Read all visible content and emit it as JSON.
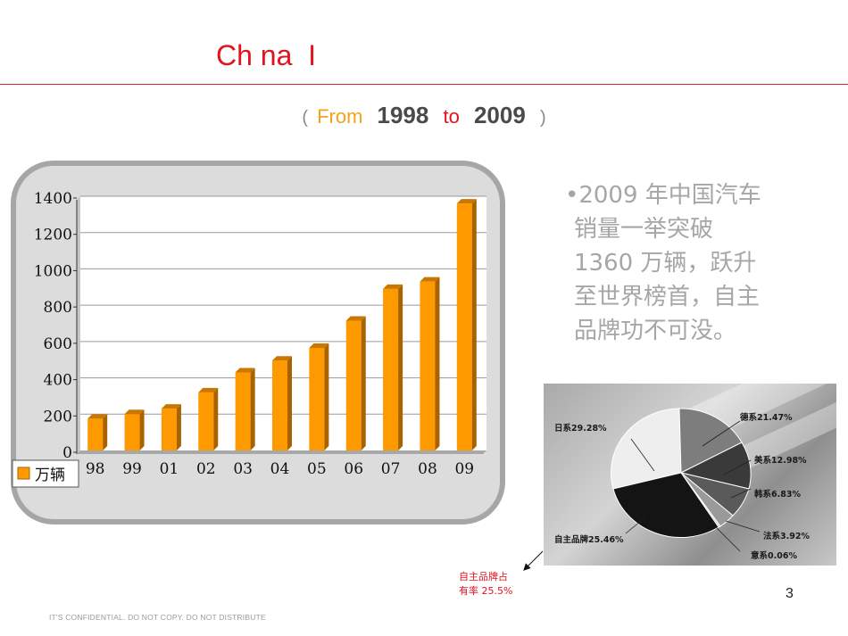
{
  "header": {
    "title": "Ch na  I",
    "subtitle": {
      "open_paren": "(",
      "from": "From",
      "start_year": "1998",
      "to": "to",
      "end_year": "2009",
      "close_paren": ")"
    }
  },
  "chart_data": {
    "type": "bar",
    "categories": [
      "98",
      "99",
      "01",
      "02",
      "03",
      "04",
      "05",
      "06",
      "07",
      "08",
      "09"
    ],
    "series": [
      {
        "name": "万辆",
        "values": [
          175,
          200,
          230,
          320,
          430,
          495,
          565,
          715,
          890,
          930,
          1360
        ]
      }
    ],
    "yticks": [
      "0",
      "200",
      "400",
      "600",
      "800",
      "1000",
      "1200",
      "1400"
    ],
    "ylim": [
      0,
      1400
    ],
    "grid": true,
    "legend": "bottom-left",
    "bar_color": "#ff9900"
  },
  "bullet": {
    "marker": "•",
    "lines": [
      "2009 年中国汽车",
      "销量一举突破",
      "1360 万辆，跃升",
      "至世界榜首，自主",
      "品牌功不可没。"
    ]
  },
  "pie": {
    "labels": {
      "japan": "日系29.28%",
      "germany": "德系21.47%",
      "usa": "美系12.98%",
      "korea": "韩系6.83%",
      "france": "法系3.92%",
      "italy": "意系0.06%",
      "domestic": "自主品牌25.46%"
    },
    "chart_data": {
      "type": "pie",
      "labels": [
        "日系",
        "德系",
        "美系",
        "韩系",
        "法系",
        "意系",
        "自主品牌"
      ],
      "values": [
        29.28,
        21.47,
        12.98,
        6.83,
        3.92,
        0.06,
        25.46
      ]
    }
  },
  "annotation": {
    "line1": "自主品牌占",
    "line2": "有率 25.5%"
  },
  "page_number": "3",
  "footer": "IT'S CONFIDENTIAL. DO NOT COPY. DO NOT DISTRIBUTE"
}
